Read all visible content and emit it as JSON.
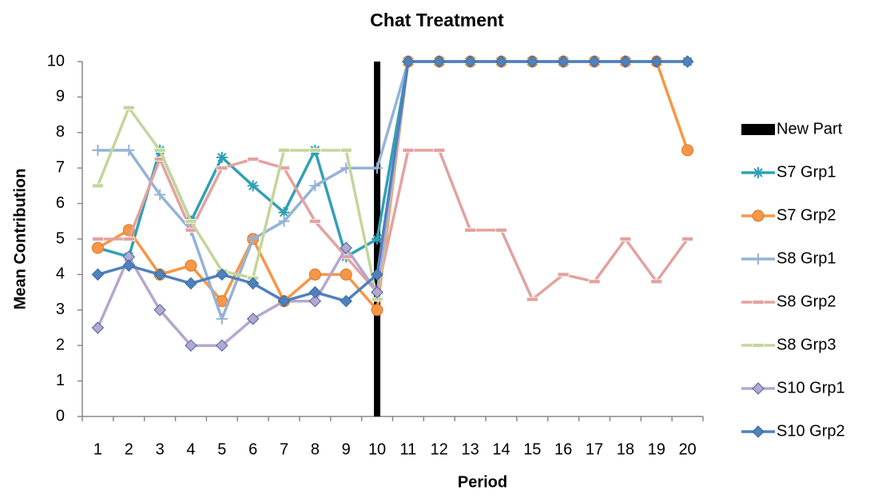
{
  "chart_data": {
    "type": "line",
    "title": "Chat Treatment",
    "x_label": "Period",
    "y_label": "Mean Contribution",
    "categories": [
      "1",
      "2",
      "3",
      "4",
      "5",
      "6",
      "7",
      "8",
      "9",
      "10",
      "11",
      "12",
      "13",
      "14",
      "15",
      "16",
      "17",
      "18",
      "19",
      "20"
    ],
    "ylim": [
      0,
      10
    ],
    "yticks": [
      0,
      1,
      2,
      3,
      4,
      5,
      6,
      7,
      8,
      9,
      10
    ],
    "vertical_line": {
      "name": "New Part",
      "color": "#000000",
      "x": "10",
      "values": [
        0,
        10
      ]
    },
    "series": [
      {
        "name": "S7 Grp1",
        "color": "#31a0b5",
        "marker": "asterisk",
        "values": [
          4.75,
          4.5,
          7.5,
          5.5,
          7.3,
          6.5,
          5.75,
          7.5,
          4.5,
          5,
          10,
          10,
          10,
          10,
          10,
          10,
          10,
          10,
          10,
          10
        ]
      },
      {
        "name": "S7 Grp2",
        "color": "#f79646",
        "marker": "circle",
        "values": [
          4.75,
          5.25,
          4,
          4.25,
          3.25,
          5,
          3.25,
          4,
          4,
          3,
          10,
          10,
          10,
          10,
          10,
          10,
          10,
          10,
          10,
          7.5
        ]
      },
      {
        "name": "S8 Grp1",
        "color": "#95b3d7",
        "marker": "plus",
        "values": [
          7.5,
          7.5,
          6.25,
          5.25,
          2.75,
          5,
          5.5,
          6.5,
          7,
          7,
          10,
          10,
          10,
          10,
          10,
          10,
          10,
          10,
          10,
          10
        ]
      },
      {
        "name": "S8 Grp2",
        "color": "#e3a2a0",
        "marker": "dash",
        "values": [
          5,
          5,
          7.25,
          5.25,
          7,
          7.25,
          7,
          5.5,
          4.5,
          3.5,
          7.5,
          7.5,
          5.25,
          5.25,
          3.3,
          4,
          3.8,
          5,
          3.8,
          5
        ]
      },
      {
        "name": "S8 Grp3",
        "color": "#c3d69b",
        "marker": "dash",
        "values": [
          6.5,
          8.7,
          7.5,
          5.5,
          4.1,
          3.9,
          7.5,
          7.5,
          7.5,
          3.3,
          10,
          10,
          10,
          10,
          10,
          10,
          10,
          10,
          10,
          10
        ]
      },
      {
        "name": "S10 Grp1",
        "color": "#b7a6cf",
        "marker": "diamond",
        "values": [
          2.5,
          4.5,
          3,
          2,
          2,
          2.75,
          3.25,
          3.25,
          4.75,
          3.5,
          10,
          10,
          10,
          10,
          10,
          10,
          10,
          10,
          10,
          10
        ]
      },
      {
        "name": "S10 Grp2",
        "color": "#4f81bd",
        "marker": "diamond",
        "values": [
          4,
          4.25,
          4,
          3.75,
          4,
          3.75,
          3.25,
          3.5,
          3.25,
          4,
          10,
          10,
          10,
          10,
          10,
          10,
          10,
          10,
          10,
          10
        ]
      }
    ]
  }
}
